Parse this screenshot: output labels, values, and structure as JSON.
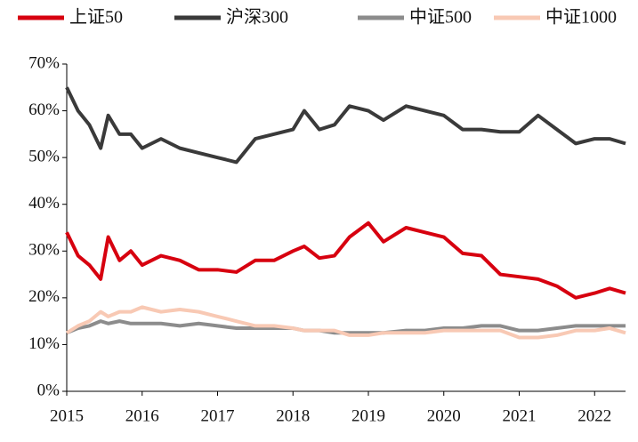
{
  "chart_data": {
    "type": "line",
    "x": [
      2015,
      2015.15,
      2015.3,
      2015.45,
      2015.55,
      2015.7,
      2015.85,
      2016,
      2016.25,
      2016.5,
      2016.75,
      2017,
      2017.25,
      2017.5,
      2017.75,
      2018,
      2018.15,
      2018.35,
      2018.55,
      2018.75,
      2019,
      2019.2,
      2019.5,
      2019.75,
      2020,
      2020.25,
      2020.5,
      2020.75,
      2021,
      2021.25,
      2021.5,
      2021.75,
      2022,
      2022.2,
      2022.41
    ],
    "series": [
      {
        "name": "上证50",
        "color": "#d7000f",
        "values": [
          34,
          29,
          27,
          24,
          33,
          28,
          30,
          27,
          29,
          28,
          26,
          26,
          25.5,
          28,
          28,
          30,
          31,
          28.5,
          29,
          33,
          36,
          32,
          35,
          34,
          33,
          29.5,
          29,
          25,
          24.5,
          24,
          22.5,
          20,
          21,
          22,
          21
        ]
      },
      {
        "name": "沪深300",
        "color": "#3a3a3a",
        "values": [
          65,
          60,
          57,
          52,
          59,
          55,
          55,
          52,
          54,
          52,
          51,
          50,
          49,
          54,
          55,
          56,
          60,
          56,
          57,
          61,
          60,
          58,
          61,
          60,
          59,
          56,
          56,
          55.5,
          55.5,
          59,
          56,
          53,
          54,
          54,
          53
        ]
      },
      {
        "name": "中证500",
        "color": "#8c8c8c",
        "values": [
          12.5,
          13.5,
          14,
          15,
          14.5,
          15,
          14.5,
          14.5,
          14.5,
          14,
          14.5,
          14,
          13.5,
          13.5,
          13.5,
          13.5,
          13,
          13,
          12.5,
          12.5,
          12.5,
          12.5,
          13,
          13,
          13.5,
          13.5,
          14,
          14,
          13,
          13,
          13.5,
          14,
          14,
          14,
          14
        ]
      },
      {
        "name": "中证1000",
        "color": "#f8c9b4",
        "values": [
          12.5,
          14,
          15,
          17,
          16,
          17,
          17,
          18,
          17,
          17.5,
          17,
          16,
          15,
          14,
          14,
          13.5,
          13,
          13,
          13,
          12,
          12,
          12.5,
          12.5,
          12.5,
          13,
          13,
          13,
          13,
          11.5,
          11.5,
          12,
          13,
          13,
          13.5,
          12.5
        ]
      }
    ],
    "xlim": [
      2015,
      2022.41
    ],
    "xticks": [
      2015,
      2016,
      2017,
      2018,
      2019,
      2020,
      2021,
      2022
    ],
    "ylim": [
      0,
      70
    ],
    "yticks": [
      {
        "value": 0,
        "label": "0%"
      },
      {
        "value": 10,
        "label": "10%"
      },
      {
        "value": 20,
        "label": "20%"
      },
      {
        "value": 30,
        "label": "30%"
      },
      {
        "value": 40,
        "label": "40%"
      },
      {
        "value": 50,
        "label": "50%"
      },
      {
        "value": 60,
        "label": "60%"
      },
      {
        "value": 70,
        "label": "70%"
      }
    ]
  }
}
